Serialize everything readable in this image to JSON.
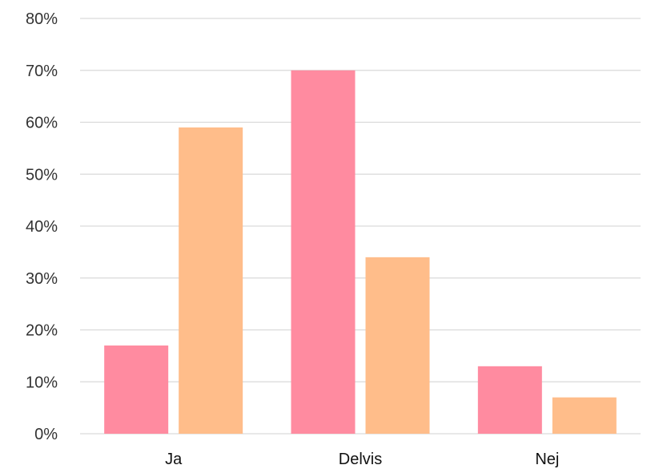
{
  "chart_data": {
    "type": "bar",
    "categories": [
      "Ja",
      "Delvis",
      "Nej"
    ],
    "series": [
      {
        "values": [
          17,
          70,
          13
        ],
        "color": "#ff8ba0"
      },
      {
        "values": [
          59,
          34,
          7
        ],
        "color": "#ffbd8a"
      }
    ],
    "ylim": [
      0,
      80
    ],
    "y_ticks": [
      "0%",
      "10%",
      "20%",
      "30%",
      "40%",
      "50%",
      "60%",
      "70%",
      "80%"
    ],
    "grid": true,
    "legend": "none"
  }
}
